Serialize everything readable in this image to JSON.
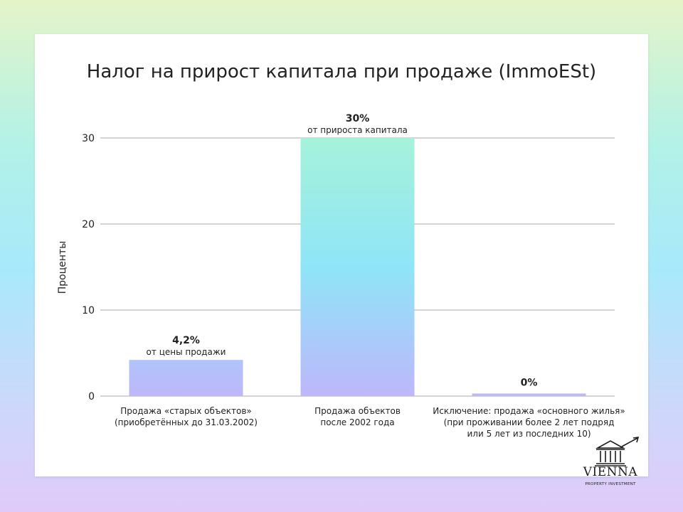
{
  "title": "Налог на прирост капитала при продаже (ImmoESt)",
  "chart_data": {
    "type": "bar",
    "ylabel": "Проценты",
    "xlabel": "",
    "ylim": [
      0,
      34
    ],
    "yticks": [
      0,
      10,
      20,
      30
    ],
    "grid": true,
    "categories": [
      [
        "Продажа «старых объектов»",
        "(приобретённых до 31.03.2002)"
      ],
      [
        "Продажа объектов",
        "после 2002 года"
      ],
      [
        "Исключение: продажа «основного жилья»",
        "(при проживании более 2 лет подряд",
        "или 5 лет из последних 10)"
      ]
    ],
    "values": [
      4.2,
      30,
      0.3
    ],
    "value_labels": [
      "4,2%",
      "30%",
      "0%"
    ],
    "value_sublabels": [
      "от цены продажи",
      "от прироста капитала",
      ""
    ],
    "colors": {
      "bar_top": "#a6f2da",
      "bar_mid": "#8fe5f7",
      "bar_bottom": "#bdb7fb",
      "grid": "#d4d4d4",
      "text": "#222222"
    }
  },
  "logo": {
    "icon": "building-icon",
    "word": "VIENNA",
    "sub": "PROPERTY INVESTMENT"
  }
}
